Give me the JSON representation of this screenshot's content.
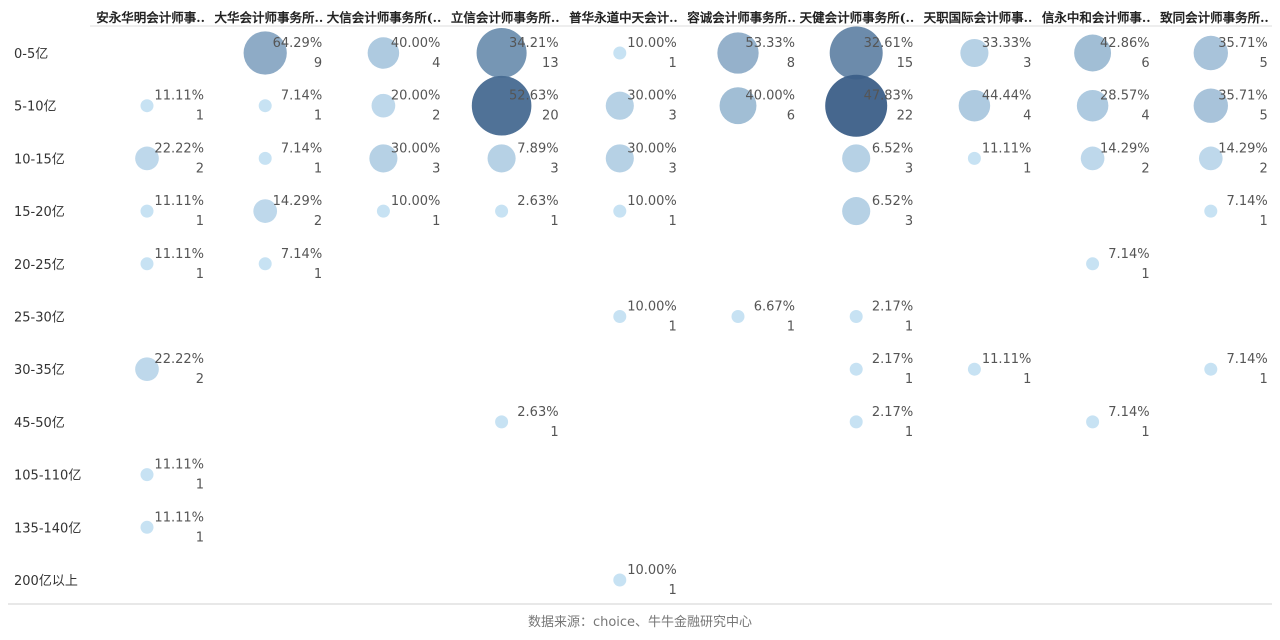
{
  "chart_data": {
    "type": "bubble-matrix",
    "columns": [
      "安永华明会计师事..",
      "大华会计师事务所..",
      "大信会计师事务所(..",
      "立信会计师事务所..",
      "普华永道中天会计..",
      "容诚会计师事务所..",
      "天健会计师事务所(..",
      "天职国际会计师事..",
      "信永中和会计师事..",
      "致同会计师事务所.."
    ],
    "rows": [
      "0-5亿",
      "5-10亿",
      "10-15亿",
      "15-20亿",
      "20-25亿",
      "25-30亿",
      "30-35亿",
      "45-50亿",
      "105-110亿",
      "135-140亿",
      "200亿以上"
    ],
    "cells": [
      {
        "row": 0,
        "col": 1,
        "pct": "64.29%",
        "count": 9
      },
      {
        "row": 0,
        "col": 2,
        "pct": "40.00%",
        "count": 4
      },
      {
        "row": 0,
        "col": 3,
        "pct": "34.21%",
        "count": 13
      },
      {
        "row": 0,
        "col": 4,
        "pct": "10.00%",
        "count": 1
      },
      {
        "row": 0,
        "col": 5,
        "pct": "53.33%",
        "count": 8
      },
      {
        "row": 0,
        "col": 6,
        "pct": "32.61%",
        "count": 15
      },
      {
        "row": 0,
        "col": 7,
        "pct": "33.33%",
        "count": 3
      },
      {
        "row": 0,
        "col": 8,
        "pct": "42.86%",
        "count": 6
      },
      {
        "row": 0,
        "col": 9,
        "pct": "35.71%",
        "count": 5
      },
      {
        "row": 1,
        "col": 0,
        "pct": "11.11%",
        "count": 1
      },
      {
        "row": 1,
        "col": 1,
        "pct": "7.14%",
        "count": 1
      },
      {
        "row": 1,
        "col": 2,
        "pct": "20.00%",
        "count": 2
      },
      {
        "row": 1,
        "col": 3,
        "pct": "52.63%",
        "count": 20
      },
      {
        "row": 1,
        "col": 4,
        "pct": "30.00%",
        "count": 3
      },
      {
        "row": 1,
        "col": 5,
        "pct": "40.00%",
        "count": 6
      },
      {
        "row": 1,
        "col": 6,
        "pct": "47.83%",
        "count": 22
      },
      {
        "row": 1,
        "col": 7,
        "pct": "44.44%",
        "count": 4
      },
      {
        "row": 1,
        "col": 8,
        "pct": "28.57%",
        "count": 4
      },
      {
        "row": 1,
        "col": 9,
        "pct": "35.71%",
        "count": 5
      },
      {
        "row": 2,
        "col": 0,
        "pct": "22.22%",
        "count": 2
      },
      {
        "row": 2,
        "col": 1,
        "pct": "7.14%",
        "count": 1
      },
      {
        "row": 2,
        "col": 2,
        "pct": "30.00%",
        "count": 3
      },
      {
        "row": 2,
        "col": 3,
        "pct": "7.89%",
        "count": 3
      },
      {
        "row": 2,
        "col": 4,
        "pct": "30.00%",
        "count": 3
      },
      {
        "row": 2,
        "col": 6,
        "pct": "6.52%",
        "count": 3
      },
      {
        "row": 2,
        "col": 7,
        "pct": "11.11%",
        "count": 1
      },
      {
        "row": 2,
        "col": 8,
        "pct": "14.29%",
        "count": 2
      },
      {
        "row": 2,
        "col": 9,
        "pct": "14.29%",
        "count": 2
      },
      {
        "row": 3,
        "col": 0,
        "pct": "11.11%",
        "count": 1
      },
      {
        "row": 3,
        "col": 1,
        "pct": "14.29%",
        "count": 2
      },
      {
        "row": 3,
        "col": 2,
        "pct": "10.00%",
        "count": 1
      },
      {
        "row": 3,
        "col": 3,
        "pct": "2.63%",
        "count": 1
      },
      {
        "row": 3,
        "col": 4,
        "pct": "10.00%",
        "count": 1
      },
      {
        "row": 3,
        "col": 6,
        "pct": "6.52%",
        "count": 3
      },
      {
        "row": 3,
        "col": 9,
        "pct": "7.14%",
        "count": 1
      },
      {
        "row": 4,
        "col": 0,
        "pct": "11.11%",
        "count": 1
      },
      {
        "row": 4,
        "col": 1,
        "pct": "7.14%",
        "count": 1
      },
      {
        "row": 4,
        "col": 8,
        "pct": "7.14%",
        "count": 1
      },
      {
        "row": 5,
        "col": 4,
        "pct": "10.00%",
        "count": 1
      },
      {
        "row": 5,
        "col": 5,
        "pct": "6.67%",
        "count": 1
      },
      {
        "row": 5,
        "col": 6,
        "pct": "2.17%",
        "count": 1
      },
      {
        "row": 6,
        "col": 0,
        "pct": "22.22%",
        "count": 2
      },
      {
        "row": 6,
        "col": 6,
        "pct": "2.17%",
        "count": 1
      },
      {
        "row": 6,
        "col": 7,
        "pct": "11.11%",
        "count": 1
      },
      {
        "row": 6,
        "col": 9,
        "pct": "7.14%",
        "count": 1
      },
      {
        "row": 7,
        "col": 3,
        "pct": "2.63%",
        "count": 1
      },
      {
        "row": 7,
        "col": 6,
        "pct": "2.17%",
        "count": 1
      },
      {
        "row": 7,
        "col": 8,
        "pct": "7.14%",
        "count": 1
      },
      {
        "row": 8,
        "col": 0,
        "pct": "11.11%",
        "count": 1
      },
      {
        "row": 9,
        "col": 0,
        "pct": "11.11%",
        "count": 1
      },
      {
        "row": 10,
        "col": 4,
        "pct": "10.00%",
        "count": 1
      }
    ],
    "color_scale": {
      "low": "#c4e0f2",
      "high": "#3c5f88"
    },
    "grid": false,
    "legend": "none"
  },
  "footer": {
    "source": "数据来源：choice、牛牛金融研究中心"
  }
}
